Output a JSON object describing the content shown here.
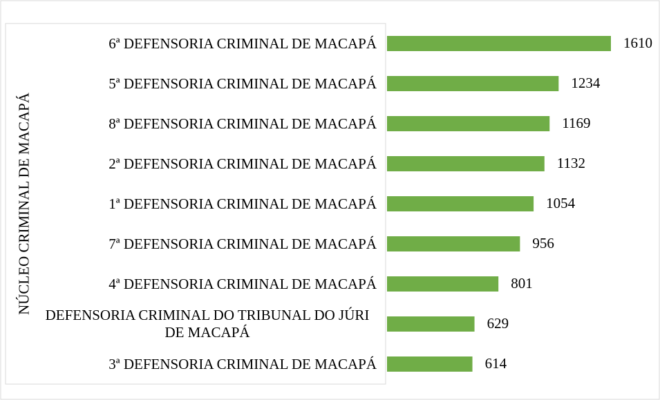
{
  "chart_data": {
    "type": "bar",
    "orientation": "horizontal",
    "group_label": "NÚCLEO CRIMINAL DE MACAPÁ",
    "categories": [
      "6ª DEFENSORIA CRIMINAL DE MACAPÁ",
      "5ª DEFENSORIA CRIMINAL DE MACAPÁ",
      "8ª DEFENSORIA CRIMINAL DE MACAPÁ",
      "2ª DEFENSORIA CRIMINAL DE MACAPÁ",
      "1ª DEFENSORIA CRIMINAL DE MACAPÁ",
      "7ª DEFENSORIA CRIMINAL DE MACAPÁ",
      "4ª DEFENSORIA CRIMINAL DE MACAPÁ",
      "DEFENSORIA CRIMINAL DO TRIBUNAL DO JÚRI DE MACAPÁ",
      "3ª DEFENSORIA CRIMINAL DE MACAPÁ"
    ],
    "values": [
      1610,
      1234,
      1169,
      1132,
      1054,
      956,
      801,
      629,
      614
    ],
    "color": "#70ad47"
  }
}
